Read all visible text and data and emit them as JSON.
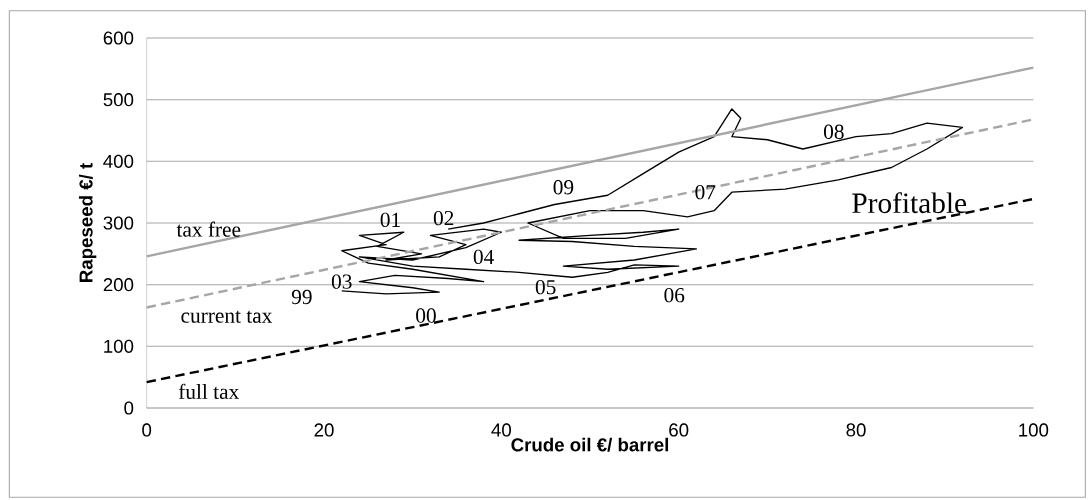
{
  "chart_data": {
    "type": "line",
    "xlabel": "Crude oil €/ barrel",
    "ylabel": "Rapeseed €/ t",
    "xlim": [
      0,
      100
    ],
    "ylim": [
      0,
      600
    ],
    "xticks": [
      0,
      20,
      40,
      60,
      80,
      100
    ],
    "yticks": [
      0,
      100,
      200,
      300,
      400,
      500,
      600
    ],
    "grid": "y",
    "marker": "none",
    "series": [
      {
        "color": "#000000",
        "line_style": "solid",
        "x": [
          22,
          27,
          33,
          30,
          24,
          28,
          34,
          38,
          30,
          25,
          22,
          27,
          24,
          29,
          26,
          31,
          27,
          33,
          36,
          32,
          38,
          40,
          36,
          30,
          24,
          30,
          36,
          42,
          48,
          52,
          55,
          60,
          52,
          47,
          55,
          62,
          55,
          48,
          42,
          50,
          56,
          60,
          54,
          47,
          43,
          50,
          56,
          61,
          64,
          66,
          72,
          78,
          84,
          88,
          92,
          88,
          84,
          80,
          74,
          70,
          66,
          67,
          66,
          64,
          60,
          56,
          52,
          46,
          42,
          38,
          34
        ],
        "values": [
          190,
          185,
          188,
          195,
          205,
          215,
          210,
          205,
          225,
          235,
          255,
          265,
          280,
          285,
          262,
          250,
          240,
          245,
          265,
          280,
          290,
          285,
          260,
          240,
          245,
          230,
          225,
          220,
          212,
          220,
          232,
          230,
          225,
          230,
          240,
          258,
          262,
          270,
          272,
          280,
          285,
          290,
          275,
          275,
          300,
          320,
          320,
          310,
          320,
          350,
          355,
          370,
          390,
          420,
          455,
          462,
          445,
          440,
          420,
          435,
          440,
          470,
          485,
          440,
          415,
          380,
          345,
          330,
          315,
          300,
          290
        ]
      },
      {
        "color": "#a6a6a6",
        "line_style": "solid",
        "x": [
          0,
          100
        ],
        "values": [
          246,
          552
        ]
      },
      {
        "color": "#a6a6a6",
        "line_style": "dashed",
        "x": [
          0,
          100
        ],
        "values": [
          163,
          468
        ]
      },
      {
        "color": "#000000",
        "line_style": "dashed",
        "x": [
          0,
          100
        ],
        "values": [
          42,
          339
        ]
      }
    ],
    "annotations": [
      "99",
      "03",
      "00",
      "01",
      "02",
      "04",
      "05",
      "06",
      "07",
      "08",
      "09",
      "tax free",
      "current tax",
      "full tax",
      "Profitable"
    ]
  }
}
